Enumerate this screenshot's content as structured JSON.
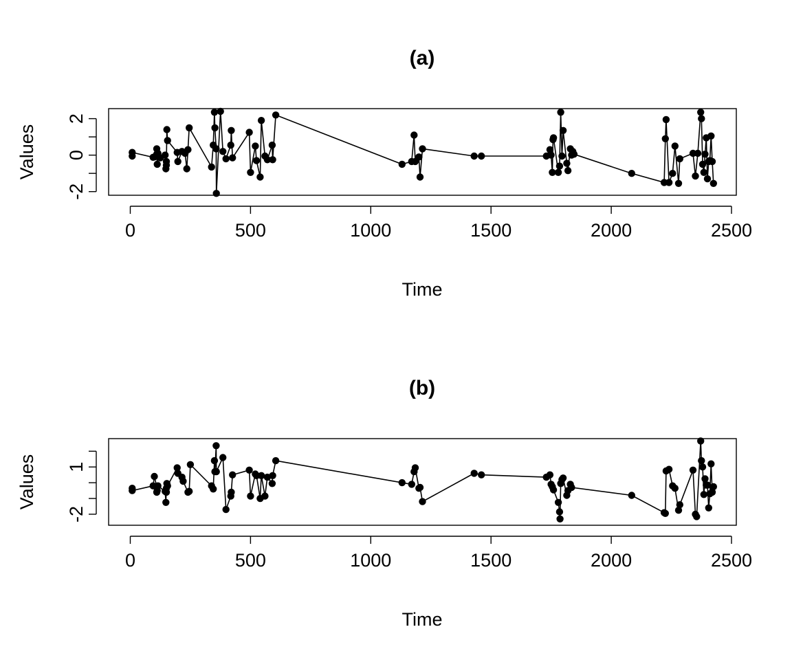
{
  "chart_data": [
    {
      "type": "line",
      "title": "(a)",
      "xlabel": "Time",
      "ylabel": "Values",
      "xlim": [
        -90,
        2520
      ],
      "ylim": [
        -2.2,
        2.55
      ],
      "xticks": [
        0,
        500,
        1000,
        1500,
        2000,
        2500
      ],
      "xtick_labels": [
        "0",
        "500",
        "1000",
        "1500",
        "2000",
        "2500"
      ],
      "yticks": [
        -2,
        -1,
        0,
        1,
        2
      ],
      "ytick_labels": [
        "-2",
        "",
        "0",
        "",
        "2"
      ],
      "grid": false,
      "series": [
        {
          "x": [
            8,
            8,
            95,
            100,
            110,
            110,
            112,
            115,
            125,
            145,
            148,
            150,
            150,
            152,
            155,
            195,
            198,
            215,
            228,
            235,
            240,
            245,
            338,
            345,
            350,
            352,
            357,
            358,
            375,
            385,
            398,
            418,
            420,
            425,
            495,
            500,
            520,
            525,
            540,
            545,
            560,
            570,
            590,
            592,
            605,
            1130,
            1170,
            1180,
            1185,
            1200,
            1205,
            1215,
            1430,
            1460,
            1730,
            1745,
            1750,
            1755,
            1758,
            1760,
            1780,
            1785,
            1790,
            1795,
            1800,
            1815,
            1820,
            1830,
            1835,
            1840,
            1845,
            2085,
            2220,
            2225,
            2228,
            2240,
            2255,
            2265,
            2280,
            2285,
            2340,
            2350,
            2360,
            2372,
            2375,
            2380,
            2385,
            2390,
            2395,
            2400,
            2405,
            2410,
            2415,
            2420,
            2425
          ],
          "y": [
            -0.05,
            0.15,
            -0.12,
            -0.1,
            0.35,
            0.05,
            -0.5,
            0.1,
            -0.15,
            0.0,
            -0.75,
            -0.35,
            -0.55,
            1.4,
            0.8,
            0.15,
            -0.35,
            0.2,
            0.1,
            -0.75,
            0.3,
            1.5,
            -0.65,
            0.55,
            2.35,
            1.5,
            0.35,
            -2.1,
            2.4,
            0.2,
            -0.2,
            0.55,
            1.35,
            -0.15,
            1.25,
            -0.95,
            0.5,
            -0.3,
            -1.2,
            1.9,
            -0.05,
            -0.25,
            0.55,
            -0.25,
            2.2,
            -0.5,
            -0.35,
            1.1,
            -0.35,
            -0.1,
            -1.2,
            0.35,
            -0.05,
            -0.05,
            -0.05,
            0.3,
            0.0,
            -0.95,
            0.85,
            0.95,
            -0.95,
            -0.6,
            2.35,
            -0.05,
            1.35,
            -0.45,
            -0.85,
            0.35,
            0.0,
            0.2,
            0.05,
            -1.0,
            -1.5,
            0.9,
            1.95,
            -1.5,
            -1.0,
            0.5,
            -1.55,
            -0.2,
            0.1,
            -1.15,
            0.1,
            2.35,
            2.0,
            -0.5,
            -0.95,
            0.05,
            0.95,
            -1.3,
            -0.35,
            -0.3,
            1.05,
            -0.35,
            -1.55
          ]
        }
      ]
    },
    {
      "type": "line",
      "title": "(b)",
      "xlabel": "Time",
      "ylabel": "Values",
      "xlim": [
        -90,
        2520
      ],
      "ylim": [
        -2.7,
        2.8
      ],
      "xticks": [
        0,
        500,
        1000,
        1500,
        2000,
        2500
      ],
      "xtick_labels": [
        "0",
        "500",
        "1000",
        "1500",
        "2000",
        "2500"
      ],
      "yticks": [
        -2,
        -1,
        0,
        1,
        2
      ],
      "ytick_labels": [
        "-2",
        "",
        "",
        "1",
        ""
      ],
      "grid": false,
      "series": [
        {
          "x": [
            8,
            8,
            95,
            100,
            110,
            110,
            112,
            115,
            145,
            148,
            150,
            150,
            152,
            155,
            195,
            198,
            215,
            220,
            240,
            245,
            250,
            338,
            345,
            350,
            352,
            357,
            358,
            385,
            398,
            418,
            420,
            425,
            495,
            500,
            520,
            525,
            540,
            545,
            560,
            570,
            590,
            592,
            605,
            1130,
            1170,
            1180,
            1185,
            1200,
            1205,
            1215,
            1430,
            1460,
            1730,
            1745,
            1750,
            1755,
            1760,
            1780,
            1785,
            1787,
            1790,
            1795,
            1800,
            1815,
            1820,
            1830,
            1835,
            2085,
            2220,
            2225,
            2228,
            2240,
            2255,
            2265,
            2280,
            2285,
            2340,
            2350,
            2355,
            2372,
            2375,
            2380,
            2385,
            2390,
            2395,
            2400,
            2405,
            2410,
            2415,
            2420,
            2425
          ],
          "y": [
            -0.35,
            -0.5,
            -0.2,
            0.4,
            -0.25,
            -0.6,
            -0.5,
            -0.2,
            -0.55,
            -1.25,
            -0.35,
            -0.6,
            -0.05,
            -0.2,
            0.95,
            0.6,
            0.35,
            0.1,
            -0.6,
            -0.55,
            1.15,
            -0.2,
            -0.4,
            1.4,
            0.7,
            2.35,
            0.7,
            1.6,
            -1.7,
            -0.85,
            -0.6,
            0.5,
            0.8,
            -0.85,
            0.55,
            0.45,
            -1.0,
            0.45,
            -0.85,
            0.35,
            -0.05,
            0.45,
            1.4,
            0.0,
            -0.1,
            0.7,
            0.95,
            -0.35,
            -0.3,
            -1.2,
            0.6,
            0.5,
            0.35,
            0.5,
            -0.1,
            -0.25,
            -0.45,
            -1.25,
            -1.85,
            -2.3,
            -0.05,
            0.2,
            0.3,
            -0.8,
            -0.5,
            -0.1,
            -0.3,
            -0.8,
            -1.9,
            -1.95,
            0.75,
            0.85,
            -0.2,
            -0.35,
            -1.75,
            -1.4,
            0.8,
            -2.0,
            -2.15,
            2.65,
            1.4,
            1.0,
            -0.75,
            0.25,
            -0.15,
            -0.15,
            -1.6,
            -0.7,
            1.2,
            -0.6,
            -0.25
          ]
        }
      ]
    }
  ]
}
